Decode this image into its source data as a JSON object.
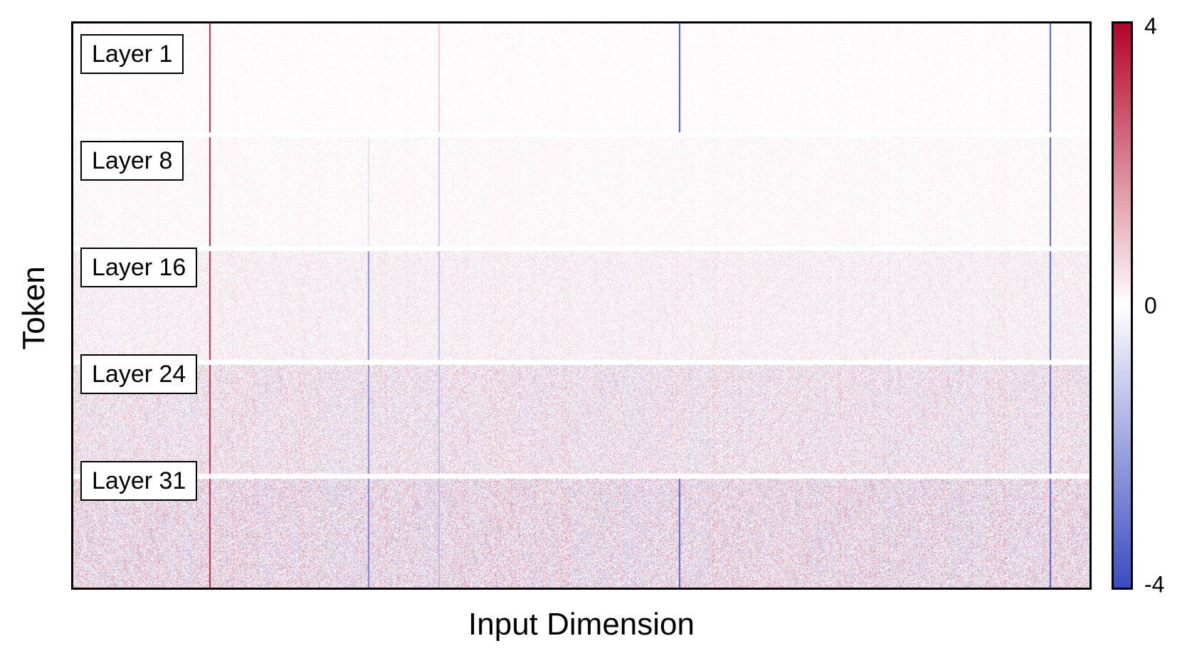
{
  "chart_data": {
    "type": "heatmap",
    "xlabel": "Input Dimension",
    "ylabel": "Token",
    "colormap": [
      "#3b4cc0",
      "#ffffff",
      "#b40426"
    ],
    "colorbar": {
      "min": -4,
      "max": 4,
      "tick_labels": [
        "4",
        "0",
        "-4"
      ]
    },
    "panels": [
      {
        "label": "Layer 1",
        "noise_level": 0.05,
        "baseline": 0.05
      },
      {
        "label": "Layer 8",
        "noise_level": 0.12,
        "baseline": 0.08
      },
      {
        "label": "Layer 16",
        "noise_level": 0.35,
        "baseline": 0.1
      },
      {
        "label": "Layer 24",
        "noise_level": 0.7,
        "baseline": 0.1
      },
      {
        "label": "Layer 31",
        "noise_level": 0.9,
        "baseline": 0.1
      }
    ],
    "outlier_dimensions": [
      {
        "dim_fraction": 0.134,
        "values_by_layer": [
          3.5,
          3.5,
          3.5,
          3.5,
          3.5
        ]
      },
      {
        "dim_fraction": 0.596,
        "values_by_layer": [
          -3.8,
          0,
          0,
          0,
          -3.5
        ]
      },
      {
        "dim_fraction": 0.961,
        "values_by_layer": [
          -3.5,
          -3.5,
          -3.5,
          -3.5,
          -3.5
        ]
      },
      {
        "dim_fraction": 0.29,
        "values_by_layer": [
          0,
          -0.6,
          -2.5,
          -2.5,
          -2.8
        ]
      },
      {
        "dim_fraction": 0.359,
        "values_by_layer": [
          0.8,
          -1.2,
          -1.5,
          -1.5,
          -1.5
        ]
      }
    ]
  }
}
